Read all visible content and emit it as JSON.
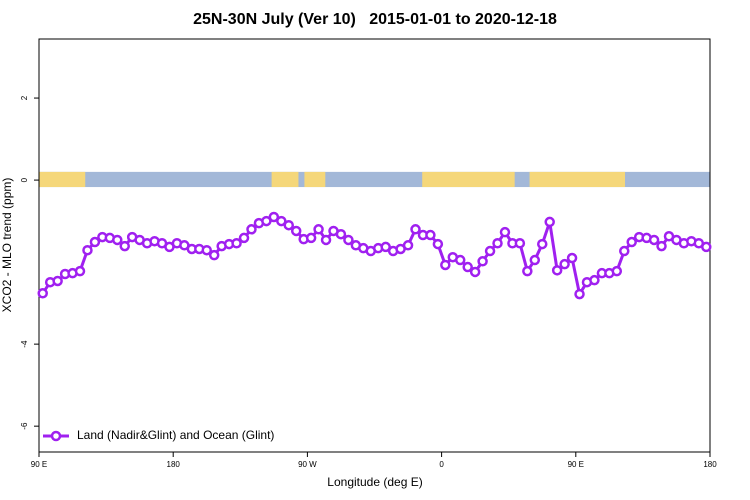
{
  "chart_data": {
    "type": "line",
    "title": "25N-30N July (Ver 10)   2015-01-01 to 2020-12-18",
    "xlabel": "Longitude (deg E)",
    "ylabel": "XCO2 - MLO trend (ppm)",
    "xlim": [
      90,
      540
    ],
    "ylim": [
      -6.63,
      3.44
    ],
    "xticks": [
      {
        "value": 90,
        "label": "90 E"
      },
      180,
      {
        "value": 270,
        "label": "90 W"
      },
      {
        "value": 360,
        "label": "0"
      },
      {
        "value": 450,
        "label": "90 E"
      },
      {
        "value": 540,
        "label": "180"
      }
    ],
    "yticks": [
      -6,
      -4,
      0,
      2
    ],
    "legend": "bottomleft",
    "land_band": {
      "ylim": [
        -0.17,
        0.2
      ],
      "ocean_color": "#a3b8d8",
      "land_color": "#f5d77a",
      "land": [
        [
          90,
          121
        ],
        [
          246,
          264
        ],
        [
          268,
          282
        ],
        [
          347,
          409
        ],
        [
          419,
          483
        ]
      ]
    },
    "series": [
      {
        "name": "Land (Nadir&Glint) and Ocean (Glint)",
        "color": "#a020f0",
        "x": [
          92.5,
          97.5,
          102.5,
          107.5,
          112.5,
          117.5,
          122.5,
          127.5,
          132.5,
          137.5,
          142.5,
          147.5,
          152.5,
          157.5,
          162.5,
          167.5,
          172.5,
          177.5,
          182.5,
          187.5,
          192.5,
          197.5,
          202.5,
          207.5,
          212.5,
          217.5,
          222.5,
          227.5,
          232.5,
          237.5,
          242.5,
          247.5,
          252.5,
          257.5,
          262.5,
          267.5,
          272.5,
          277.5,
          282.5,
          287.5,
          292.5,
          297.5,
          302.5,
          307.5,
          312.5,
          317.5,
          322.5,
          327.5,
          332.5,
          337.5,
          342.5,
          347.5,
          352.5,
          357.5,
          362.5,
          367.5,
          372.5,
          377.5,
          382.5,
          387.5,
          392.5,
          397.5,
          402.5,
          407.5,
          412.5,
          417.5,
          422.5,
          427.5,
          432.5,
          437.5,
          442.5,
          447.5,
          452.5,
          457.5,
          462.5,
          467.5,
          472.5,
          477.5,
          482.5,
          487.5,
          492.5,
          497.5,
          502.5,
          507.5,
          512.5,
          517.5,
          522.5,
          527.5,
          532.5,
          537.5
        ],
        "values": [
          -2.76,
          -2.49,
          -2.46,
          -2.29,
          -2.27,
          -2.22,
          -1.71,
          -1.51,
          -1.39,
          -1.41,
          -1.46,
          -1.61,
          -1.39,
          -1.46,
          -1.54,
          -1.49,
          -1.54,
          -1.63,
          -1.54,
          -1.59,
          -1.68,
          -1.68,
          -1.71,
          -1.83,
          -1.61,
          -1.56,
          -1.54,
          -1.41,
          -1.2,
          -1.05,
          -1.0,
          -0.9,
          -1.0,
          -1.1,
          -1.24,
          -1.44,
          -1.41,
          -1.2,
          -1.46,
          -1.24,
          -1.32,
          -1.46,
          -1.59,
          -1.66,
          -1.73,
          -1.66,
          -1.63,
          -1.73,
          -1.68,
          -1.59,
          -1.2,
          -1.34,
          -1.34,
          -1.56,
          -2.07,
          -1.88,
          -1.95,
          -2.12,
          -2.24,
          -1.98,
          -1.73,
          -1.54,
          -1.27,
          -1.54,
          -1.54,
          -2.22,
          -1.95,
          -1.56,
          -1.02,
          -2.2,
          -2.05,
          -1.9,
          -2.78,
          -2.49,
          -2.44,
          -2.27,
          -2.27,
          -2.22,
          -1.73,
          -1.51,
          -1.39,
          -1.41,
          -1.46,
          -1.61,
          -1.37,
          -1.46,
          -1.54,
          -1.49,
          -1.54,
          -1.63
        ]
      }
    ]
  }
}
